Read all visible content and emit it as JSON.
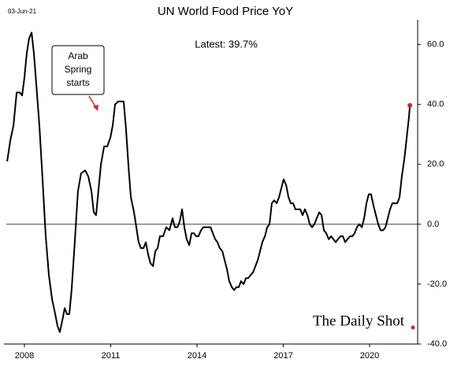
{
  "chart_data": {
    "type": "line",
    "title": "UN World Food Price YoY",
    "date": "03-Jun-21",
    "latest_label": "Latest:  39.7%",
    "annotation": [
      "Arab",
      "Spring",
      "starts"
    ],
    "source": "The Daily Shot",
    "xlim": [
      2007.37,
      2021.67
    ],
    "ylim": [
      -40,
      67
    ],
    "xticks": [
      2008,
      2011,
      2014,
      2017,
      2020
    ],
    "yticks": [
      {
        "value": 60,
        "label": "60.0"
      },
      {
        "value": 40,
        "label": "40.0"
      },
      {
        "value": 20,
        "label": "20.0"
      },
      {
        "value": 0,
        "label": "0.0"
      },
      {
        "value": -20,
        "label": "-20.0"
      },
      {
        "value": -40,
        "label": "-40.0"
      }
    ],
    "zero_line": true,
    "last_point_color": "#e02020",
    "x": [
      2007.4,
      2007.51,
      2007.62,
      2007.67,
      2007.73,
      2007.84,
      2007.92,
      2008.0,
      2008.08,
      2008.16,
      2008.25,
      2008.33,
      2008.41,
      2008.52,
      2008.63,
      2008.74,
      2008.85,
      2008.96,
      2009.07,
      2009.15,
      2009.23,
      2009.32,
      2009.4,
      2009.48,
      2009.56,
      2009.64,
      2009.75,
      2009.86,
      2009.97,
      2010.11,
      2010.22,
      2010.33,
      2010.41,
      2010.49,
      2010.58,
      2010.66,
      2010.77,
      2010.88,
      2010.99,
      2011.07,
      2011.15,
      2011.26,
      2011.37,
      2011.45,
      2011.53,
      2011.62,
      2011.7,
      2011.81,
      2011.89,
      2011.97,
      2012.05,
      2012.14,
      2012.22,
      2012.3,
      2012.38,
      2012.47,
      2012.55,
      2012.63,
      2012.71,
      2012.82,
      2012.93,
      2013.04,
      2013.15,
      2013.23,
      2013.32,
      2013.4,
      2013.48,
      2013.56,
      2013.64,
      2013.73,
      2013.81,
      2013.89,
      2013.97,
      2014.05,
      2014.14,
      2014.22,
      2014.3,
      2014.38,
      2014.47,
      2014.55,
      2014.63,
      2014.71,
      2014.79,
      2014.88,
      2014.96,
      2015.04,
      2015.12,
      2015.21,
      2015.29,
      2015.37,
      2015.45,
      2015.53,
      2015.62,
      2015.7,
      2015.78,
      2015.86,
      2015.95,
      2016.03,
      2016.11,
      2016.19,
      2016.27,
      2016.36,
      2016.44,
      2016.52,
      2016.6,
      2016.68,
      2016.77,
      2016.85,
      2016.93,
      2017.01,
      2017.1,
      2017.18,
      2017.26,
      2017.34,
      2017.42,
      2017.51,
      2017.59,
      2017.67,
      2017.75,
      2017.84,
      2017.92,
      2018.0,
      2018.08,
      2018.16,
      2018.25,
      2018.33,
      2018.41,
      2018.49,
      2018.58,
      2018.66,
      2018.74,
      2018.82,
      2018.9,
      2018.99,
      2019.07,
      2019.15,
      2019.23,
      2019.32,
      2019.4,
      2019.48,
      2019.56,
      2019.64,
      2019.73,
      2019.81,
      2019.89,
      2019.97,
      2020.05,
      2020.14,
      2020.22,
      2020.3,
      2020.38,
      2020.47,
      2020.55,
      2020.63,
      2020.71,
      2020.79,
      2020.88,
      2020.96,
      2021.04,
      2021.12,
      2021.21,
      2021.29,
      2021.37,
      2021.4
    ],
    "series": [
      {
        "name": "UN World Food Price YoY",
        "color": "#000000",
        "values": [
          21,
          28,
          33,
          38,
          44,
          44,
          43,
          49,
          57,
          62,
          64,
          57,
          47,
          33,
          15,
          -4,
          -17,
          -25,
          -30,
          -34,
          -36,
          -32,
          -28,
          -30,
          -30,
          -22,
          -6,
          11,
          17,
          18,
          16,
          11,
          4,
          3,
          12,
          20,
          26,
          26,
          29,
          33,
          40,
          41,
          41,
          41,
          32,
          19,
          9,
          4,
          -1,
          -6,
          -8,
          -8,
          -6,
          -10,
          -13,
          -14,
          -9,
          -8,
          -4,
          -4,
          -1,
          -2,
          2,
          -1,
          -1,
          1,
          5,
          -1,
          -5,
          -7,
          -3,
          -3,
          -4,
          -4,
          -2,
          -1,
          -1,
          -1,
          -1,
          -3,
          -5,
          -6,
          -8,
          -9,
          -12,
          -15,
          -19,
          -21,
          -22,
          -21,
          -21,
          -19,
          -20,
          -18,
          -18,
          -17,
          -16,
          -14,
          -12,
          -9,
          -6,
          -4,
          -1,
          0,
          7,
          8,
          7,
          9,
          12,
          15,
          13,
          9,
          7,
          7,
          5,
          5,
          5,
          3,
          5,
          3,
          0,
          -1,
          0,
          2,
          4,
          3,
          -2,
          -3,
          -5,
          -4,
          -5,
          -6,
          -5,
          -4,
          -4,
          -6,
          -5,
          -4,
          -4,
          -3,
          -1,
          0,
          -1,
          2,
          7,
          10,
          10,
          6,
          3,
          0,
          -2,
          -2,
          -1,
          2,
          5,
          7,
          7,
          7,
          9,
          16,
          22,
          29,
          36,
          39.7
        ]
      }
    ]
  }
}
